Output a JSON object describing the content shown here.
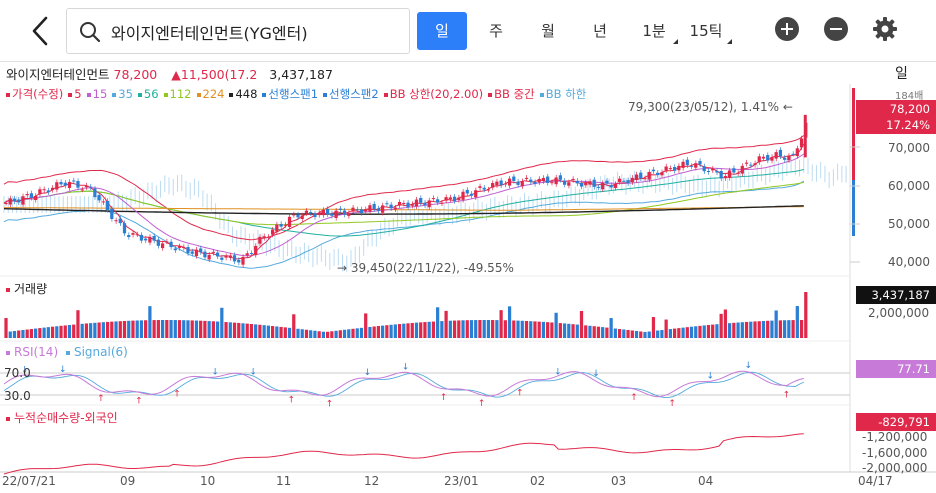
{
  "header": {
    "search_value": "와이지엔터테인먼트(YG엔터)",
    "periods": [
      {
        "label": "일",
        "active": true
      },
      {
        "label": "주",
        "active": false
      },
      {
        "label": "월",
        "active": false
      },
      {
        "label": "년",
        "active": false
      },
      {
        "label": "1분",
        "active": false
      },
      {
        "label": "15틱",
        "active": false
      }
    ]
  },
  "info": {
    "name": "와이지엔터테인먼트",
    "price": "78,200",
    "change": "▲11,500(17.2",
    "volume": "3,437,187",
    "period_label": "일"
  },
  "legend": [
    {
      "label": "가격(수정)",
      "color": "#e0284a"
    },
    {
      "label": "5",
      "color": "#e0284a"
    },
    {
      "label": "15",
      "color": "#c060d0"
    },
    {
      "label": "35",
      "color": "#55aadd"
    },
    {
      "label": "56",
      "color": "#20b0a0"
    },
    {
      "label": "112",
      "color": "#90c820"
    },
    {
      "label": "224",
      "color": "#e09020"
    },
    {
      "label": "448",
      "color": "#222222"
    },
    {
      "label": "선행스팬1",
      "color": "#2a7fd4"
    },
    {
      "label": "선행스팬2",
      "color": "#2a7fd4"
    },
    {
      "label": "BB 상한(20,2.00)",
      "color": "#e0284a"
    },
    {
      "label": "BB 중간",
      "color": "#e0284a"
    },
    {
      "label": "BB 하한",
      "color": "#55aadd"
    }
  ],
  "annotations": {
    "high": "79,300(23/05/12), 1.41%",
    "low": "39,450(22/11/22), -49.55%"
  },
  "price_axis": {
    "ticks": [
      "70,000",
      "60,000",
      "50,000",
      "40,000"
    ],
    "current_price": "78,200",
    "current_pct": "17.24%",
    "top_value": "184배"
  },
  "volume_panel": {
    "label": "거래량",
    "tick": "2,000,000",
    "current": "3,437,187"
  },
  "rsi_panel": {
    "label_rsi": "RSI(14)",
    "label_signal": "Signal(6)",
    "level_high": "70.0",
    "level_low": "30.0",
    "current": "77.71"
  },
  "foreign_panel": {
    "label": "누적순매수량-외국인",
    "ticks": [
      "-1,200,000",
      "-1,600,000",
      "-2,000,000"
    ],
    "current": "-829,791"
  },
  "x_axis": [
    "22/07/21",
    "09",
    "10",
    "11",
    "12",
    "23/01",
    "02",
    "03",
    "04",
    "04/17"
  ],
  "colors": {
    "up": "#e0284a",
    "down": "#2a7fd4",
    "accent": "#2d7ff9",
    "rsi": "#c77ad8"
  },
  "icons": {
    "back": "chevron-left-icon",
    "search": "search-icon",
    "zoom_in": "plus-circle-icon",
    "zoom_out": "minus-circle-icon",
    "settings": "gear-icon"
  }
}
